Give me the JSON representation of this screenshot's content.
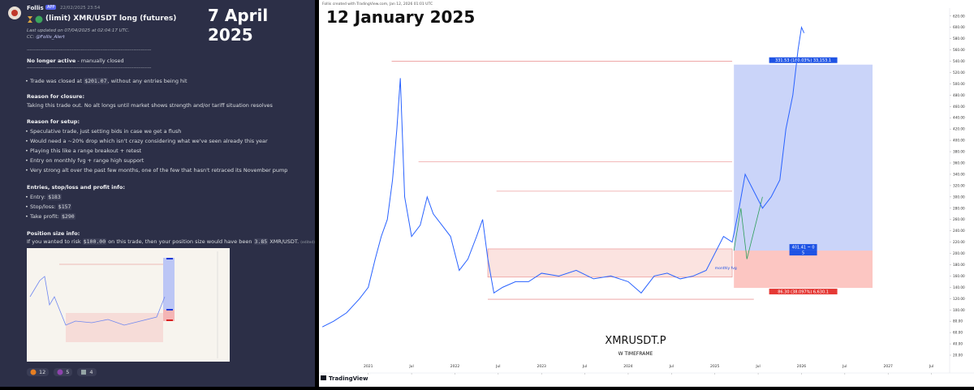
{
  "discord": {
    "author": "Follis",
    "badge": "APP",
    "timestamp": "22/02/2025 23:54",
    "title": "(limit) XMR/USDT long (futures)",
    "updated": "Last updated on 07/04/2025 at 02:04:17 UTC.",
    "cc": [
      "CC: ",
      "@Follis_Alert"
    ],
    "divider": "-------------------------------------------------------------------------------------",
    "status": [
      "No longer active",
      " - manually closed"
    ],
    "closed": [
      "Trade was closed at ",
      "$201.07",
      ", without any entries being hit"
    ],
    "closure_heading": "Reason for closure:",
    "closure_text": "Taking this trade out. No alt longs until market shows strength and/or tariff situation resolves",
    "setup_heading": "Reason for setup:",
    "setup": [
      "Speculative trade, just setting bids in case we get a flush",
      "Would need a ~20% drop which isn't crazy considering what we've seen already this year",
      "Playing this like a range breakout + retest",
      "Entry on monthly fvg + range high support",
      "Very strong alt over the past few months, one of the few that hasn't retraced its November pump"
    ],
    "entries_heading": "Entries, stop/loss and profit info:",
    "entries": [
      [
        "Entry: ",
        "$183"
      ],
      [
        "Stop/loss: ",
        "$157"
      ],
      [
        "Take profit: ",
        "$290"
      ]
    ],
    "size_heading": "Position size info:",
    "size": [
      "If you wanted to risk ",
      "$100.00",
      " on this trade, then your position size would have been ",
      "3.85",
      " XMR/USDT.",
      "(edited)"
    ],
    "reactions": [
      "12",
      "5",
      "4"
    ],
    "date": "7 April 2025"
  },
  "chart_data": {
    "type": "line",
    "date": "12 January 2025",
    "header": "Follis created with TradingView.com, Jan 12, 2026 01:01 UTC",
    "symbol": "XMRUSDT.P",
    "timeframe": "W TIMEFRAME",
    "fvg_label": "monthly fvg",
    "brand": "TradingView",
    "color": "#2962ff",
    "x": [
      2020.47,
      2020.6,
      2020.75,
      2020.9,
      2021.0,
      2021.08,
      2021.15,
      2021.22,
      2021.28,
      2021.33,
      2021.37,
      2021.42,
      2021.5,
      2021.6,
      2021.68,
      2021.75,
      2021.85,
      2021.95,
      2022.05,
      2022.15,
      2022.25,
      2022.32,
      2022.38,
      2022.45,
      2022.55,
      2022.7,
      2022.85,
      2023.0,
      2023.2,
      2023.4,
      2023.6,
      2023.8,
      2024.0,
      2024.15,
      2024.3,
      2024.45,
      2024.6,
      2024.75,
      2024.9,
      2025.0,
      2025.1,
      2025.2,
      2025.28,
      2025.35,
      2025.45,
      2025.55,
      2025.65,
      2025.75,
      2025.82,
      2025.9,
      2025.96,
      2026.0,
      2026.03
    ],
    "values": [
      70,
      80,
      95,
      120,
      140,
      190,
      230,
      260,
      330,
      420,
      510,
      300,
      230,
      250,
      300,
      270,
      250,
      230,
      170,
      190,
      230,
      260,
      190,
      130,
      140,
      150,
      150,
      165,
      160,
      170,
      155,
      160,
      150,
      130,
      160,
      165,
      155,
      160,
      170,
      200,
      230,
      220,
      280,
      340,
      310,
      280,
      300,
      330,
      420,
      480,
      560,
      600,
      590
    ],
    "xlim": [
      2020.45,
      2027.71
    ],
    "ylim": [
      10,
      634
    ],
    "xticks": [
      2021,
      {
        "value": 2021.5,
        "label": "Jul"
      },
      2022,
      {
        "value": 2022.5,
        "label": "Jul"
      },
      2023,
      {
        "value": 2023.5,
        "label": "Jul"
      },
      2024,
      {
        "value": 2024.5,
        "label": "Jul"
      },
      2025,
      {
        "value": 2025.5,
        "label": "Jul"
      },
      2026,
      {
        "value": 2026.5,
        "label": "Jul"
      },
      2027,
      {
        "value": 2027.5,
        "label": "Jul"
      }
    ],
    "yticks": [
      {
        "value": 20,
        "label": "20.00"
      },
      {
        "value": 40,
        "label": "40.00"
      },
      {
        "value": 60,
        "label": "60.00"
      },
      {
        "value": 80,
        "label": "80.00"
      },
      {
        "value": 100,
        "label": "100.00"
      },
      {
        "value": 120,
        "label": "120.00"
      },
      {
        "value": 140,
        "label": "140.00"
      },
      {
        "value": 160,
        "label": "160.00"
      },
      {
        "value": 180,
        "label": "180.00"
      },
      {
        "value": 200,
        "label": "200.00"
      },
      {
        "value": 220,
        "label": "220.00"
      },
      {
        "value": 240,
        "label": "240.00"
      },
      {
        "value": 260,
        "label": "260.00"
      },
      {
        "value": 280,
        "label": "280.00"
      },
      {
        "value": 300,
        "label": "300.00"
      },
      {
        "value": 320,
        "label": "320.00"
      },
      {
        "value": 340,
        "label": "340.00"
      },
      {
        "value": 360,
        "label": "360.00"
      },
      {
        "value": 380,
        "label": "380.00"
      },
      {
        "value": 400,
        "label": "400.00"
      },
      {
        "value": 420,
        "label": "420.00"
      },
      {
        "value": 440,
        "label": "440.00"
      },
      {
        "value": 460,
        "label": "460.00"
      },
      {
        "value": 480,
        "label": "480.00"
      },
      {
        "value": 500,
        "label": "500.00"
      },
      {
        "value": 520,
        "label": "520.00"
      },
      {
        "value": 540,
        "label": "540.00"
      },
      {
        "value": 560,
        "label": "560.00"
      },
      {
        "value": 580,
        "label": "580.00"
      },
      {
        "value": 600,
        "label": "600.00"
      },
      {
        "value": 620,
        "label": "620.00"
      }
    ],
    "levels": [
      {
        "price": 540,
        "from": 2021.27,
        "to": 2025.2
      },
      {
        "price": 362,
        "from": 2021.58,
        "to": 2025.2
      },
      {
        "price": 310,
        "from": 2022.48,
        "to": 2025.2
      },
      {
        "price": 119,
        "from": 2022.38,
        "to": 2025.45
      }
    ],
    "range": {
      "top": 208,
      "bottom": 158,
      "from": 2022.38,
      "to": 2025.2
    },
    "position": {
      "from": 2025.22,
      "to": 2026.82,
      "target": 534,
      "entry": 205,
      "stop": 139,
      "target_label": "331.53 (180.03%) 33,153.1",
      "entry_label": [
        "401.41 ~ 0",
        "5"
      ],
      "stop_label": "86.30 (38.097%) 6,630.1"
    }
  }
}
